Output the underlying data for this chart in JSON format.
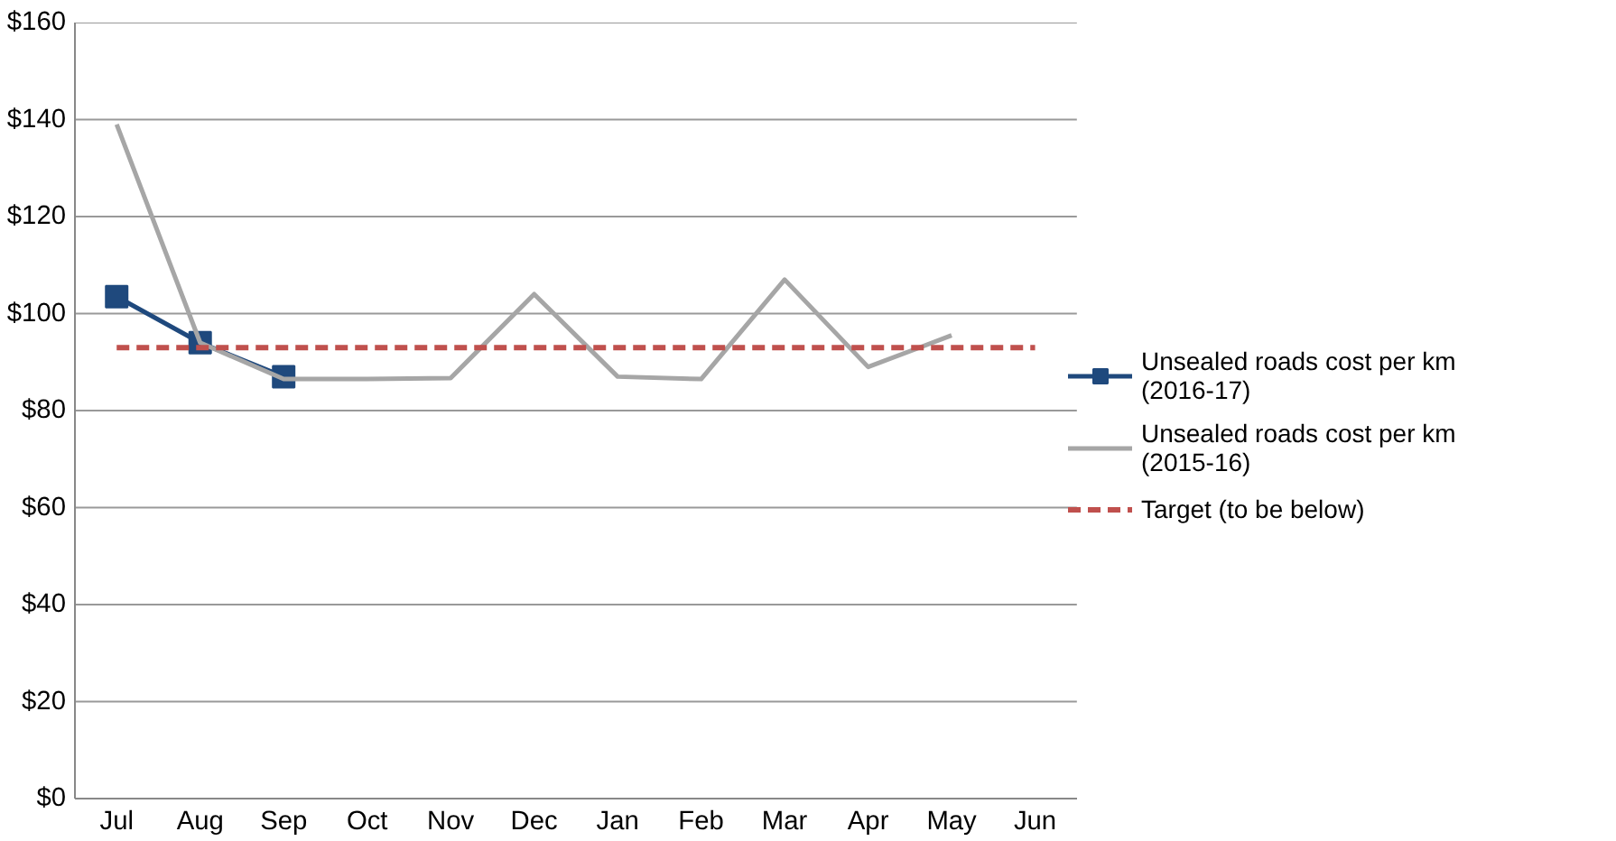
{
  "chart_data": {
    "type": "line",
    "categories": [
      "Jul",
      "Aug",
      "Sep",
      "Oct",
      "Nov",
      "Dec",
      "Jan",
      "Feb",
      "Mar",
      "Apr",
      "May",
      "Jun"
    ],
    "series": [
      {
        "name": "Unsealed roads cost per km (2016-17)",
        "color": "#1f497d",
        "marker": "square",
        "line_style": "solid",
        "values": [
          103.5,
          94,
          87,
          null,
          null,
          null,
          null,
          null,
          null,
          null,
          null,
          null
        ]
      },
      {
        "name": "Unsealed roads cost per km (2015-16)",
        "color": "#a6a6a6",
        "marker": "none",
        "line_style": "solid",
        "values": [
          139,
          94,
          86.5,
          86.5,
          86.7,
          104,
          87,
          86.5,
          107,
          89,
          95.5,
          null
        ]
      },
      {
        "name": "Target (to be below)",
        "color": "#c0504d",
        "marker": "none",
        "line_style": "dashed",
        "values": [
          93,
          93,
          93,
          93,
          93,
          93,
          93,
          93,
          93,
          93,
          93,
          93
        ]
      }
    ],
    "ylim": [
      0,
      160
    ],
    "yticks": [
      {
        "value": 0,
        "label": "$0"
      },
      {
        "value": 20,
        "label": "$20"
      },
      {
        "value": 40,
        "label": "$40"
      },
      {
        "value": 60,
        "label": "$60"
      },
      {
        "value": 80,
        "label": "$80"
      },
      {
        "value": 100,
        "label": "$100"
      },
      {
        "value": 120,
        "label": "$120"
      },
      {
        "value": 140,
        "label": "$140"
      },
      {
        "value": 160,
        "label": "$160"
      }
    ],
    "grid": "y",
    "legend": "right"
  }
}
